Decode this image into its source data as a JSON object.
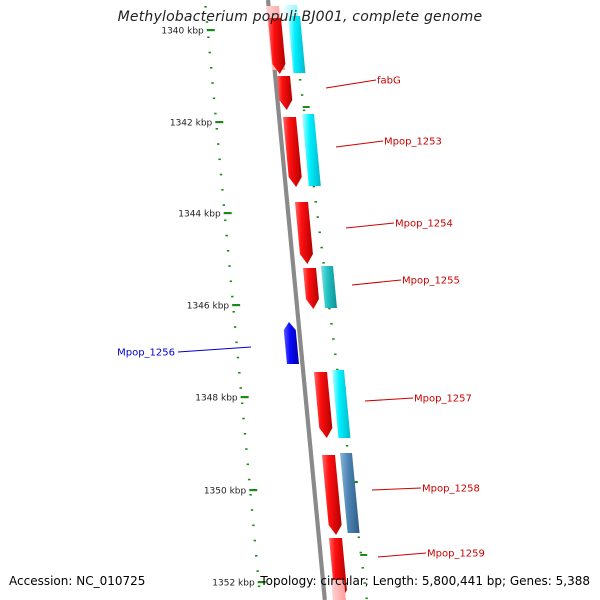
{
  "header": {
    "title": "Methylobacterium populi BJ001, complete genome"
  },
  "footer": {
    "accession": "Accession: NC_010725",
    "summary": "Topology: circular; Length: 5,800,441 bp; Genes: 5,388"
  },
  "ruler": {
    "labels": [
      "1340 kbp",
      "1342 kbp",
      "1344 kbp",
      "1346 kbp",
      "1348 kbp",
      "1350 kbp",
      "1352 kbp"
    ]
  },
  "genes": [
    {
      "name": "fabG",
      "strand": "+",
      "color": "#cc0000"
    },
    {
      "name": "Mpop_1253",
      "strand": "+",
      "color": "#cc0000"
    },
    {
      "name": "Mpop_1254",
      "strand": "+",
      "color": "#cc0000"
    },
    {
      "name": "Mpop_1255",
      "strand": "+",
      "color": "#cc0000"
    },
    {
      "name": "Mpop_1256",
      "strand": "-",
      "color": "#0000cc"
    },
    {
      "name": "Mpop_1257",
      "strand": "+",
      "color": "#cc0000"
    },
    {
      "name": "Mpop_1258",
      "strand": "+",
      "color": "#cc0000"
    },
    {
      "name": "Mpop_1259",
      "strand": "+",
      "color": "#cc0000"
    }
  ],
  "colors": {
    "forward_cds": "#ff0000",
    "reverse_cds": "#0000ff",
    "gene_feature": "#00e5ee",
    "gene_feature_alt": "#1cb6b6",
    "gene_feature_dark": "#4a82b0",
    "backbone": "#8a8a8a",
    "tick": "#1a8a1a"
  }
}
